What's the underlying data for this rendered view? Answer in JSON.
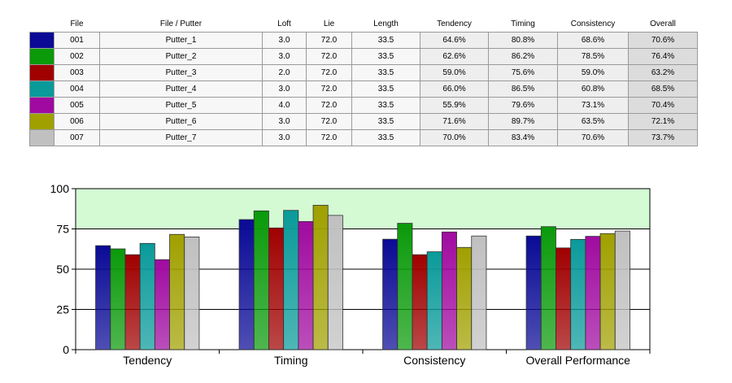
{
  "table": {
    "headers": [
      "File",
      "File / Putter",
      "Loft",
      "Lie",
      "Length",
      "Tendency",
      "Timing",
      "Consistency",
      "Overall"
    ],
    "rows": [
      {
        "color": "#0a0a96",
        "file": "001",
        "putter": "Putter_1",
        "loft": "3.0",
        "lie": "72.0",
        "length": "33.5",
        "tendency": "64.6%",
        "timing": "80.8%",
        "consistency": "68.6%",
        "overall": "70.6%"
      },
      {
        "color": "#0a9a0a",
        "file": "002",
        "putter": "Putter_2",
        "loft": "3.0",
        "lie": "72.0",
        "length": "33.5",
        "tendency": "62.6%",
        "timing": "86.2%",
        "consistency": "78.5%",
        "overall": "76.4%"
      },
      {
        "color": "#a00000",
        "file": "003",
        "putter": "Putter_3",
        "loft": "2.0",
        "lie": "72.0",
        "length": "33.5",
        "tendency": "59.0%",
        "timing": "75.6%",
        "consistency": "59.0%",
        "overall": "63.2%"
      },
      {
        "color": "#0a9a9a",
        "file": "004",
        "putter": "Putter_4",
        "loft": "3.0",
        "lie": "72.0",
        "length": "33.5",
        "tendency": "66.0%",
        "timing": "86.5%",
        "consistency": "60.8%",
        "overall": "68.5%"
      },
      {
        "color": "#a00aa0",
        "file": "005",
        "putter": "Putter_5",
        "loft": "4.0",
        "lie": "72.0",
        "length": "33.5",
        "tendency": "55.9%",
        "timing": "79.6%",
        "consistency": "73.1%",
        "overall": "70.4%"
      },
      {
        "color": "#a0a000",
        "file": "006",
        "putter": "Putter_6",
        "loft": "3.0",
        "lie": "72.0",
        "length": "33.5",
        "tendency": "71.6%",
        "timing": "89.7%",
        "consistency": "63.5%",
        "overall": "72.1%"
      },
      {
        "color": "#c0c0c0",
        "file": "007",
        "putter": "Putter_7",
        "loft": "3.0",
        "lie": "72.0",
        "length": "33.5",
        "tendency": "70.0%",
        "timing": "83.4%",
        "consistency": "70.6%",
        "overall": "73.7%"
      }
    ]
  },
  "chart_data": {
    "type": "bar",
    "categories": [
      "Tendency",
      "Timing",
      "Consistency",
      "Overall Performance"
    ],
    "series": [
      {
        "values": [
          64.6,
          80.8,
          68.6,
          70.6
        ],
        "color": "#0a0a96"
      },
      {
        "values": [
          62.6,
          86.2,
          78.5,
          76.4
        ],
        "color": "#0a9a0a"
      },
      {
        "values": [
          59.0,
          75.6,
          59.0,
          63.2
        ],
        "color": "#a00000"
      },
      {
        "values": [
          66.0,
          86.5,
          60.8,
          68.5
        ],
        "color": "#0a9a9a"
      },
      {
        "values": [
          55.9,
          79.6,
          73.1,
          70.4
        ],
        "color": "#a00aa0"
      },
      {
        "values": [
          71.6,
          89.7,
          63.5,
          72.1
        ],
        "color": "#a0a000"
      },
      {
        "values": [
          70.0,
          83.4,
          70.6,
          73.7
        ],
        "color": "#c0c0c0"
      }
    ],
    "ylim": [
      0,
      100
    ],
    "yticks": [
      0,
      25,
      50,
      75,
      100
    ],
    "target_band": [
      75,
      100
    ],
    "target_band_color": "#d4fad4",
    "grid": true,
    "legend": "none"
  }
}
